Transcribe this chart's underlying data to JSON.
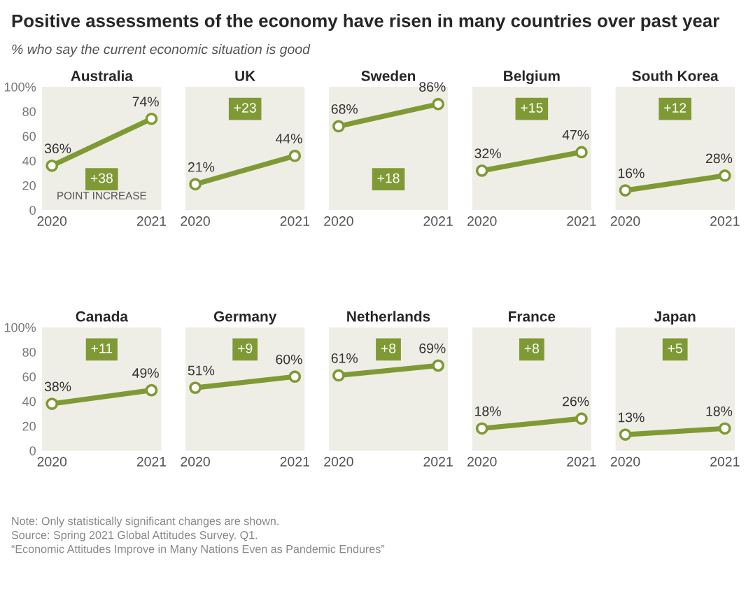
{
  "chart_data": [
    {
      "type": "other",
      "title": "Positive assessments of the economy have risen in many countries over past year",
      "subtitle": "% who say the current economic situation is good",
      "annotations": [
        "Note: Only statistically significant changes are shown.",
        "Source: Spring 2021 Global Attitudes Survey. Q1.",
        "“Economic Attitudes Improve in Many Nations Even as Pandemic Endures”"
      ]
    },
    {
      "type": "line",
      "title": "Australia",
      "categories": [
        "2020",
        "2021"
      ],
      "values": [
        36,
        74
      ],
      "value_labels": [
        "36%",
        "74%"
      ],
      "color": "#7f9a35",
      "marker": "circle",
      "ylim": [
        0,
        100
      ],
      "yticks": [
        0,
        20,
        40,
        60,
        80,
        {
          "value": 100,
          "label": "100%"
        }
      ],
      "annotations": [
        "+38",
        "POINT INCREASE"
      ]
    },
    {
      "type": "line",
      "title": "UK",
      "categories": [
        "2020",
        "2021"
      ],
      "values": [
        21,
        44
      ],
      "value_labels": [
        "21%",
        "44%"
      ],
      "color": "#7f9a35",
      "marker": "circle",
      "ylim": [
        0,
        100
      ],
      "tick_labels": "x",
      "annotations": [
        "+23"
      ]
    },
    {
      "type": "line",
      "title": "Sweden",
      "categories": [
        "2020",
        "2021"
      ],
      "values": [
        68,
        86
      ],
      "value_labels": [
        "68%",
        "86%"
      ],
      "color": "#7f9a35",
      "marker": "circle",
      "ylim": [
        0,
        100
      ],
      "tick_labels": "x",
      "annotations": [
        "+18"
      ]
    },
    {
      "type": "line",
      "title": "Belgium",
      "categories": [
        "2020",
        "2021"
      ],
      "values": [
        32,
        47
      ],
      "value_labels": [
        "32%",
        "47%"
      ],
      "color": "#7f9a35",
      "marker": "circle",
      "ylim": [
        0,
        100
      ],
      "tick_labels": "x",
      "annotations": [
        "+15"
      ]
    },
    {
      "type": "line",
      "title": "South Korea",
      "categories": [
        "2020",
        "2021"
      ],
      "values": [
        16,
        28
      ],
      "value_labels": [
        "16%",
        "28%"
      ],
      "color": "#7f9a35",
      "marker": "circle",
      "ylim": [
        0,
        100
      ],
      "tick_labels": "x",
      "annotations": [
        "+12"
      ]
    },
    {
      "type": "line",
      "title": "Canada",
      "categories": [
        "2020",
        "2021"
      ],
      "values": [
        38,
        49
      ],
      "value_labels": [
        "38%",
        "49%"
      ],
      "color": "#7f9a35",
      "marker": "circle",
      "ylim": [
        0,
        100
      ],
      "yticks": [
        0,
        20,
        40,
        60,
        80,
        {
          "value": 100,
          "label": "100%"
        }
      ],
      "annotations": [
        "+11"
      ]
    },
    {
      "type": "line",
      "title": "Germany",
      "categories": [
        "2020",
        "2021"
      ],
      "values": [
        51,
        60
      ],
      "value_labels": [
        "51%",
        "60%"
      ],
      "color": "#7f9a35",
      "marker": "circle",
      "ylim": [
        0,
        100
      ],
      "tick_labels": "x",
      "annotations": [
        "+9"
      ]
    },
    {
      "type": "line",
      "title": "Netherlands",
      "categories": [
        "2020",
        "2021"
      ],
      "values": [
        61,
        69
      ],
      "value_labels": [
        "61%",
        "69%"
      ],
      "color": "#7f9a35",
      "marker": "circle",
      "ylim": [
        0,
        100
      ],
      "tick_labels": "x",
      "annotations": [
        "+8"
      ]
    },
    {
      "type": "line",
      "title": "France",
      "categories": [
        "2020",
        "2021"
      ],
      "values": [
        18,
        26
      ],
      "value_labels": [
        "18%",
        "26%"
      ],
      "color": "#7f9a35",
      "marker": "circle",
      "ylim": [
        0,
        100
      ],
      "tick_labels": "x",
      "annotations": [
        "+8"
      ]
    },
    {
      "type": "line",
      "title": "Japan",
      "categories": [
        "2020",
        "2021"
      ],
      "values": [
        13,
        18
      ],
      "value_labels": [
        "13%",
        "18%"
      ],
      "color": "#7f9a35",
      "marker": "circle",
      "ylim": [
        0,
        100
      ],
      "tick_labels": "x",
      "annotations": [
        "+5"
      ]
    }
  ]
}
